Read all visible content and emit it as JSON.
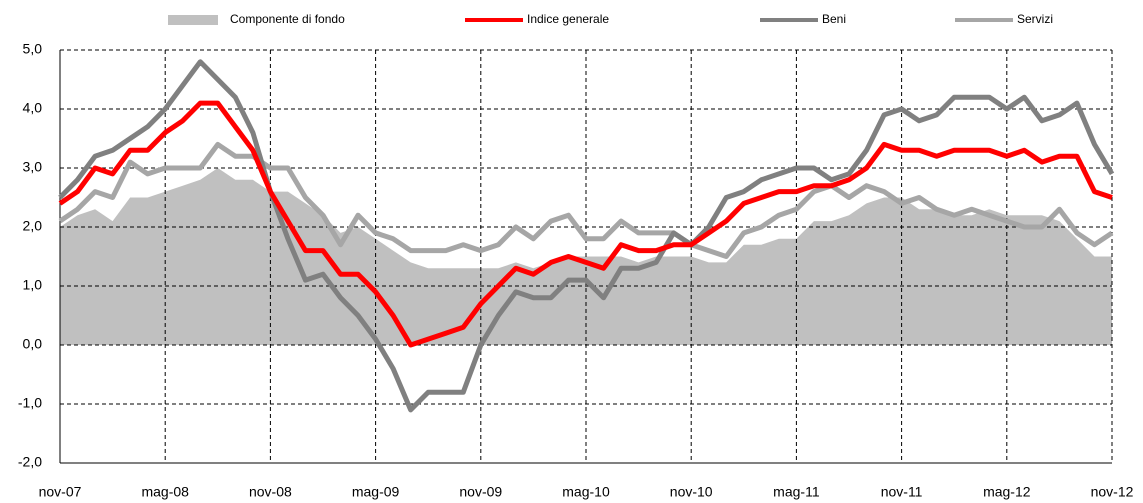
{
  "chart_data": {
    "type": "line",
    "categories": [
      "nov-07",
      null,
      null,
      null,
      null,
      null,
      "mag-08",
      null,
      null,
      null,
      null,
      null,
      "nov-08",
      null,
      null,
      null,
      null,
      null,
      "mag-09",
      null,
      null,
      null,
      null,
      null,
      "nov-09",
      null,
      null,
      null,
      null,
      null,
      "mag-10",
      null,
      null,
      null,
      null,
      null,
      "nov-10",
      null,
      null,
      null,
      null,
      null,
      "mag-11",
      null,
      null,
      null,
      null,
      null,
      "nov-11",
      null,
      null,
      null,
      null,
      null,
      "mag-12",
      null,
      null,
      null,
      null,
      null,
      "nov-12"
    ],
    "series": [
      {
        "name": "Componente di fondo",
        "type": "area",
        "color": "#c0c0c0",
        "values": [
          2.0,
          2.2,
          2.3,
          2.1,
          2.5,
          2.5,
          2.6,
          2.7,
          2.8,
          3.0,
          2.8,
          2.8,
          2.6,
          2.6,
          2.4,
          2.2,
          1.9,
          2.0,
          1.8,
          1.6,
          1.4,
          1.3,
          1.3,
          1.3,
          1.3,
          1.3,
          1.4,
          1.3,
          1.4,
          1.5,
          1.5,
          1.5,
          1.5,
          1.4,
          1.5,
          1.5,
          1.5,
          1.4,
          1.4,
          1.7,
          1.7,
          1.8,
          1.8,
          2.1,
          2.1,
          2.2,
          2.4,
          2.5,
          2.5,
          2.3,
          2.3,
          2.2,
          2.2,
          2.3,
          2.2,
          2.2,
          2.2,
          2.1,
          1.8,
          1.5,
          1.5
        ]
      },
      {
        "name": "Indice generale",
        "type": "line",
        "color": "#ff0000",
        "values": [
          2.4,
          2.6,
          3.0,
          2.9,
          3.3,
          3.3,
          3.6,
          3.8,
          4.1,
          4.1,
          3.7,
          3.3,
          2.6,
          2.1,
          1.6,
          1.6,
          1.2,
          1.2,
          0.9,
          0.5,
          0.0,
          0.1,
          0.2,
          0.3,
          0.7,
          1.0,
          1.3,
          1.2,
          1.4,
          1.5,
          1.4,
          1.3,
          1.7,
          1.6,
          1.6,
          1.7,
          1.7,
          1.9,
          2.1,
          2.4,
          2.5,
          2.6,
          2.6,
          2.7,
          2.7,
          2.8,
          3.0,
          3.4,
          3.3,
          3.3,
          3.2,
          3.3,
          3.3,
          3.3,
          3.2,
          3.3,
          3.1,
          3.2,
          3.2,
          2.6,
          2.5
        ]
      },
      {
        "name": "Beni",
        "type": "line",
        "color": "#808080",
        "values": [
          2.5,
          2.8,
          3.2,
          3.3,
          3.5,
          3.7,
          4.0,
          4.4,
          4.8,
          4.5,
          4.2,
          3.6,
          2.6,
          1.8,
          1.1,
          1.2,
          0.8,
          0.5,
          0.1,
          -0.4,
          -1.1,
          -0.8,
          -0.8,
          -0.8,
          0.0,
          0.5,
          0.9,
          0.8,
          0.8,
          1.1,
          1.1,
          0.8,
          1.3,
          1.3,
          1.4,
          1.9,
          1.7,
          2.0,
          2.5,
          2.6,
          2.8,
          2.9,
          3.0,
          3.0,
          2.8,
          2.9,
          3.3,
          3.9,
          4.0,
          3.8,
          3.9,
          4.2,
          4.2,
          4.2,
          4.0,
          4.2,
          3.8,
          3.9,
          4.1,
          3.4,
          2.9
        ]
      },
      {
        "name": "Servizi",
        "type": "line",
        "color": "#a6a6a6",
        "values": [
          2.1,
          2.3,
          2.6,
          2.5,
          3.1,
          2.9,
          3.0,
          3.0,
          3.0,
          3.4,
          3.2,
          3.2,
          3.0,
          3.0,
          2.5,
          2.2,
          1.7,
          2.2,
          1.9,
          1.8,
          1.6,
          1.6,
          1.6,
          1.7,
          1.6,
          1.7,
          2.0,
          1.8,
          2.1,
          2.2,
          1.8,
          1.8,
          2.1,
          1.9,
          1.9,
          1.9,
          1.7,
          1.6,
          1.5,
          1.9,
          2.0,
          2.2,
          2.3,
          2.6,
          2.7,
          2.5,
          2.7,
          2.6,
          2.4,
          2.5,
          2.3,
          2.2,
          2.3,
          2.2,
          2.1,
          2.0,
          2.0,
          2.3,
          1.9,
          1.7,
          1.9
        ]
      }
    ],
    "ylim": [
      -2,
      5
    ],
    "yticks": [
      {
        "value": -2,
        "label": "-2,0"
      },
      {
        "value": -1,
        "label": "-1,0"
      },
      {
        "value": 0,
        "label": "0,0"
      },
      {
        "value": 1,
        "label": "1,0"
      },
      {
        "value": 2,
        "label": "2,0"
      },
      {
        "value": 3,
        "label": "3,0"
      },
      {
        "value": 4,
        "label": "4,0"
      },
      {
        "value": 5,
        "label": "5,0"
      }
    ],
    "grid": true,
    "legend": "top"
  }
}
